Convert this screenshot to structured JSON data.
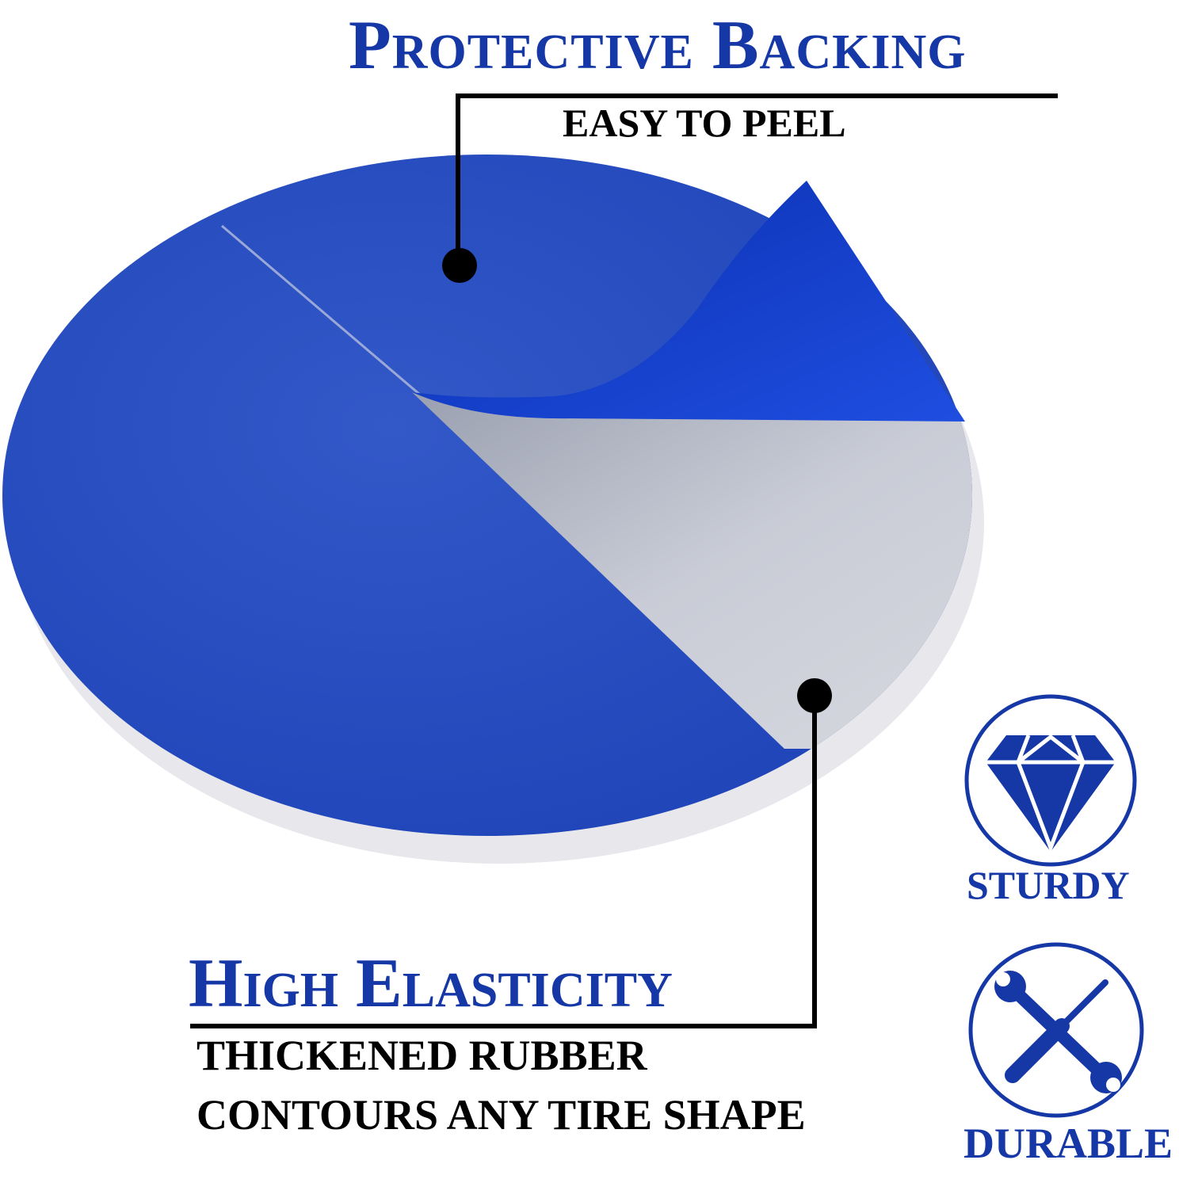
{
  "header": {
    "title": "Protective Backing",
    "subtitle": "EASY TO PEEL"
  },
  "callout": {
    "title": "High Elasticity",
    "line1": "THICKENED RUBBER",
    "line2": "CONTOURS ANY TIRE SHAPE"
  },
  "features": [
    {
      "label": "STURDY",
      "icon": "diamond-icon"
    },
    {
      "label": "DURABLE",
      "icon": "wrench-screwdriver-icon"
    }
  ],
  "colors": {
    "accent": "#1538a6",
    "patch_blue": "#1f46c0",
    "backing_gray": "#c4c8d2"
  }
}
